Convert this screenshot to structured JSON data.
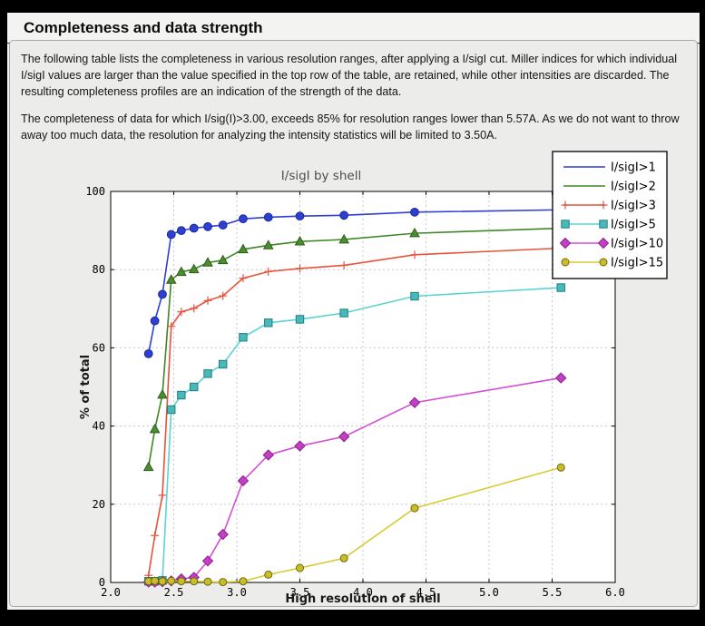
{
  "page": {
    "heading": "Completeness and data strength"
  },
  "description": {
    "paragraph1": "The following table lists the completeness in various resolution ranges, after applying a I/sigI cut. Miller indices for which individual I/sigI values are larger than the value specified in the top row of the table, are retained, while other intensities are discarded. The resulting completeness profiles are an indication of the strength of the data.",
    "paragraph2": "The completeness of data for which I/sig(I)>3.00, exceeds  85% for resolution ranges lower than 5.57A. As we do not want to throw away too much data, the resolution for analyzing the intensity statistics will be limited to 3.50A."
  },
  "chart_data": {
    "type": "line",
    "title": "I/sigI by shell",
    "xlabel": "High resolution of shell",
    "ylabel": "% of total",
    "xlim": [
      2.0,
      6.0
    ],
    "ylim": [
      0,
      100
    ],
    "xticks": [
      2.0,
      2.5,
      3.0,
      3.5,
      4.0,
      4.5,
      5.0,
      5.5,
      6.0
    ],
    "xtick_labels": [
      "2.0",
      "2.5",
      "3.0",
      "3.5",
      "4.0",
      "4.5",
      "5.0",
      "5.5",
      "6.0"
    ],
    "yticks": [
      0,
      20,
      40,
      60,
      80,
      100
    ],
    "ytick_labels": [
      "0",
      "20",
      "40",
      "60",
      "80",
      "100"
    ],
    "grid": true,
    "legend_position": "upper right",
    "title_color": "#4d4d4d",
    "grid_color": "#c8c8c8",
    "plot_bg": "#ffffff",
    "x": [
      2.3,
      2.35,
      2.41,
      2.48,
      2.56,
      2.66,
      2.77,
      2.89,
      3.05,
      3.25,
      3.5,
      3.85,
      4.41,
      5.57
    ],
    "series": [
      {
        "name": "I/sigI>1",
        "color": "#2f3fd3",
        "marker": "circle",
        "marker_fill": "#2f3fd3",
        "marker_edge": "#1a2a90",
        "legend_markers": false,
        "values": [
          58.5,
          66.9,
          73.7,
          89.0,
          90.0,
          90.6,
          91.0,
          91.4,
          93.0,
          93.4,
          93.7,
          93.9,
          94.7,
          95.3
        ]
      },
      {
        "name": "I/sigI>2",
        "color": "#3f8726",
        "marker": "triangle",
        "marker_fill": "#4a8e2f",
        "marker_edge": "#2e5c1a",
        "legend_markers": false,
        "values": [
          29.5,
          39.2,
          48.0,
          77.4,
          79.4,
          80.1,
          81.8,
          82.4,
          85.2,
          86.2,
          87.2,
          87.7,
          89.3,
          90.6
        ]
      },
      {
        "name": "I/sigI>3",
        "color": "#e8513b",
        "marker": "plus",
        "marker_fill": "#e8513b",
        "marker_edge": "#e8513b",
        "legend_markers": true,
        "values": [
          1.8,
          12.0,
          22.3,
          65.5,
          69.2,
          70.1,
          72.1,
          73.3,
          77.8,
          79.5,
          80.3,
          81.1,
          83.8,
          85.5
        ]
      },
      {
        "name": "I/sigI>5",
        "color": "#5cd3d3",
        "marker": "square",
        "marker_fill": "#49b8b8",
        "marker_edge": "#1f8080",
        "legend_markers": true,
        "values": [
          0.3,
          0.3,
          0.5,
          44.2,
          47.9,
          50.0,
          53.4,
          55.8,
          62.7,
          66.4,
          67.3,
          68.9,
          73.2,
          75.4
        ]
      },
      {
        "name": "I/sigI>10",
        "color": "#d44fd4",
        "marker": "diamond",
        "marker_fill": "#c33fc3",
        "marker_edge": "#8c1f8c",
        "legend_markers": true,
        "values": [
          0.1,
          0.1,
          0.2,
          0.4,
          0.9,
          1.3,
          5.5,
          12.3,
          26.0,
          32.6,
          34.9,
          37.3,
          46.0,
          52.3
        ]
      },
      {
        "name": "I/sigI>15",
        "color": "#d8cc33",
        "marker": "circle-sm",
        "marker_fill": "#c9bd29",
        "marker_edge": "#6f680f",
        "legend_markers": true,
        "values": [
          0.3,
          0.4,
          0.3,
          0.4,
          0.3,
          0.3,
          0.2,
          0.1,
          0.3,
          2.0,
          3.7,
          6.2,
          19.0,
          29.4
        ]
      }
    ]
  }
}
